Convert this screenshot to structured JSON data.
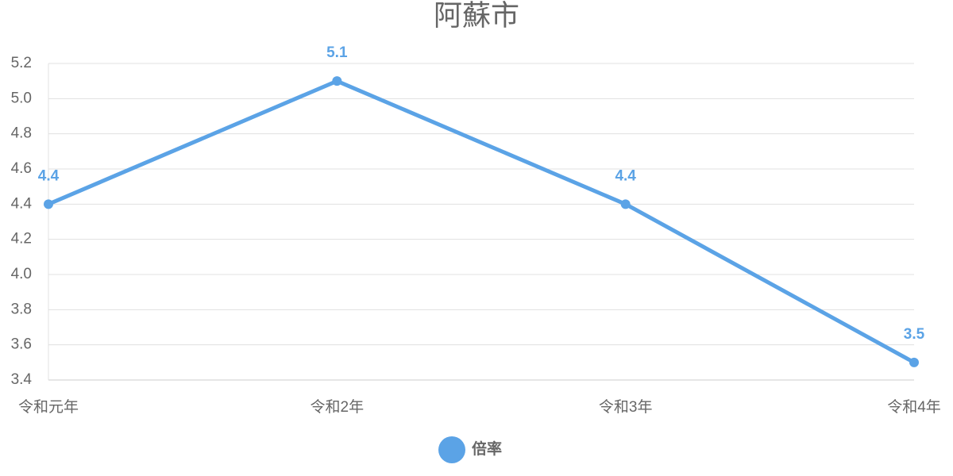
{
  "chart_data": {
    "type": "line",
    "title": "阿蘇市",
    "categories": [
      "令和元年",
      "令和2年",
      "令和3年",
      "令和4年"
    ],
    "series": [
      {
        "name": "倍率",
        "color": "#5ba3e6",
        "values": [
          4.4,
          5.1,
          4.4,
          3.5
        ]
      }
    ],
    "ylim": [
      3.4,
      5.2
    ],
    "yticks": [
      3.4,
      3.6,
      3.8,
      {
        "value": 4,
        "label": "4.0"
      },
      4.2,
      4.4,
      4.6,
      4.8,
      {
        "value": 5,
        "label": "5.0"
      },
      5.2
    ],
    "grid": true,
    "legend": "bottom"
  }
}
